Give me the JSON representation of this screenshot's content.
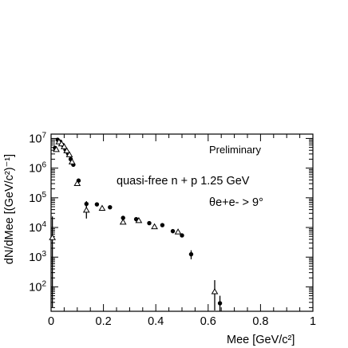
{
  "chart_data": {
    "type": "scatter",
    "annotations": {
      "preliminary": "Preliminary",
      "reaction": "quasi-free n + p 1.25 GeV",
      "cut": "θe+e- > 9°"
    },
    "xlabel": "Mee [GeV/c²]",
    "ylabel": "dN/dMee [(GeV/c²)⁻¹]",
    "xlim": [
      0,
      1
    ],
    "ylim": [
      15,
      14000000
    ],
    "yscale": "log",
    "grid": false,
    "x_ticks": [
      {
        "v": 0,
        "label": "0"
      },
      {
        "v": 0.2,
        "label": "0.2"
      },
      {
        "v": 0.4,
        "label": "0.4"
      },
      {
        "v": 0.6,
        "label": "0.6"
      },
      {
        "v": 0.8,
        "label": "0.8"
      },
      {
        "v": 1,
        "label": "1"
      }
    ],
    "y_ticks": [
      {
        "v": 100,
        "base": "10",
        "exp": "2"
      },
      {
        "v": 1000,
        "base": "10",
        "exp": "3"
      },
      {
        "v": 10000,
        "base": "10",
        "exp": "4"
      },
      {
        "v": 100000,
        "base": "10",
        "exp": "5"
      },
      {
        "v": 1000000,
        "base": "10",
        "exp": "6"
      },
      {
        "v": 10000000,
        "base": "10",
        "exp": "7"
      }
    ],
    "series": [
      {
        "marker": "filled-circle",
        "color": "#000000",
        "points": [
          {
            "x": 0.015,
            "y": 4800000
          },
          {
            "x": 0.025,
            "y": 9000000
          },
          {
            "x": 0.035,
            "y": 7800000
          },
          {
            "x": 0.045,
            "y": 6000000
          },
          {
            "x": 0.055,
            "y": 4200000
          },
          {
            "x": 0.065,
            "y": 3100000
          },
          {
            "x": 0.075,
            "y": 2000000
          },
          {
            "x": 0.085,
            "y": 1300000
          },
          {
            "x": 0.105,
            "y": 380000
          },
          {
            "x": 0.135,
            "y": 62000,
            "yerr_lo": 22000,
            "yerr_hi": 15000
          },
          {
            "x": 0.175,
            "y": 60000
          },
          {
            "x": 0.225,
            "y": 48000
          },
          {
            "x": 0.275,
            "y": 21000
          },
          {
            "x": 0.325,
            "y": 19000
          },
          {
            "x": 0.375,
            "y": 14000
          },
          {
            "x": 0.425,
            "y": 12000
          },
          {
            "x": 0.465,
            "y": 7500
          },
          {
            "x": 0.5,
            "y": 5400
          },
          {
            "x": 0.535,
            "y": 1250,
            "yerr_lo": 400,
            "yerr_hi": 450
          },
          {
            "x": 0.645,
            "y": 28,
            "yerr_lo": 13,
            "yerr_hi": 22
          }
        ]
      },
      {
        "marker": "open-triangle",
        "color": "#000000",
        "points": [
          {
            "x": 0.005,
            "y": 4500,
            "yerr_lo": 4480,
            "yerr_hi": 19000
          },
          {
            "x": 0.02,
            "y": 4200000
          },
          {
            "x": 0.03,
            "y": 7600000
          },
          {
            "x": 0.04,
            "y": 6500000
          },
          {
            "x": 0.05,
            "y": 5200000
          },
          {
            "x": 0.06,
            "y": 3800000
          },
          {
            "x": 0.07,
            "y": 2800000
          },
          {
            "x": 0.08,
            "y": 1600000
          },
          {
            "x": 0.1,
            "y": 300000
          },
          {
            "x": 0.135,
            "y": 38000,
            "yerr_lo": 18000,
            "yerr_hi": 15000
          },
          {
            "x": 0.195,
            "y": 44000
          },
          {
            "x": 0.275,
            "y": 15000
          },
          {
            "x": 0.335,
            "y": 17000
          },
          {
            "x": 0.395,
            "y": 10500
          },
          {
            "x": 0.485,
            "y": 7000
          },
          {
            "x": 0.625,
            "y": 68,
            "yerr_lo": 52,
            "yerr_hi": 100
          }
        ]
      }
    ]
  }
}
